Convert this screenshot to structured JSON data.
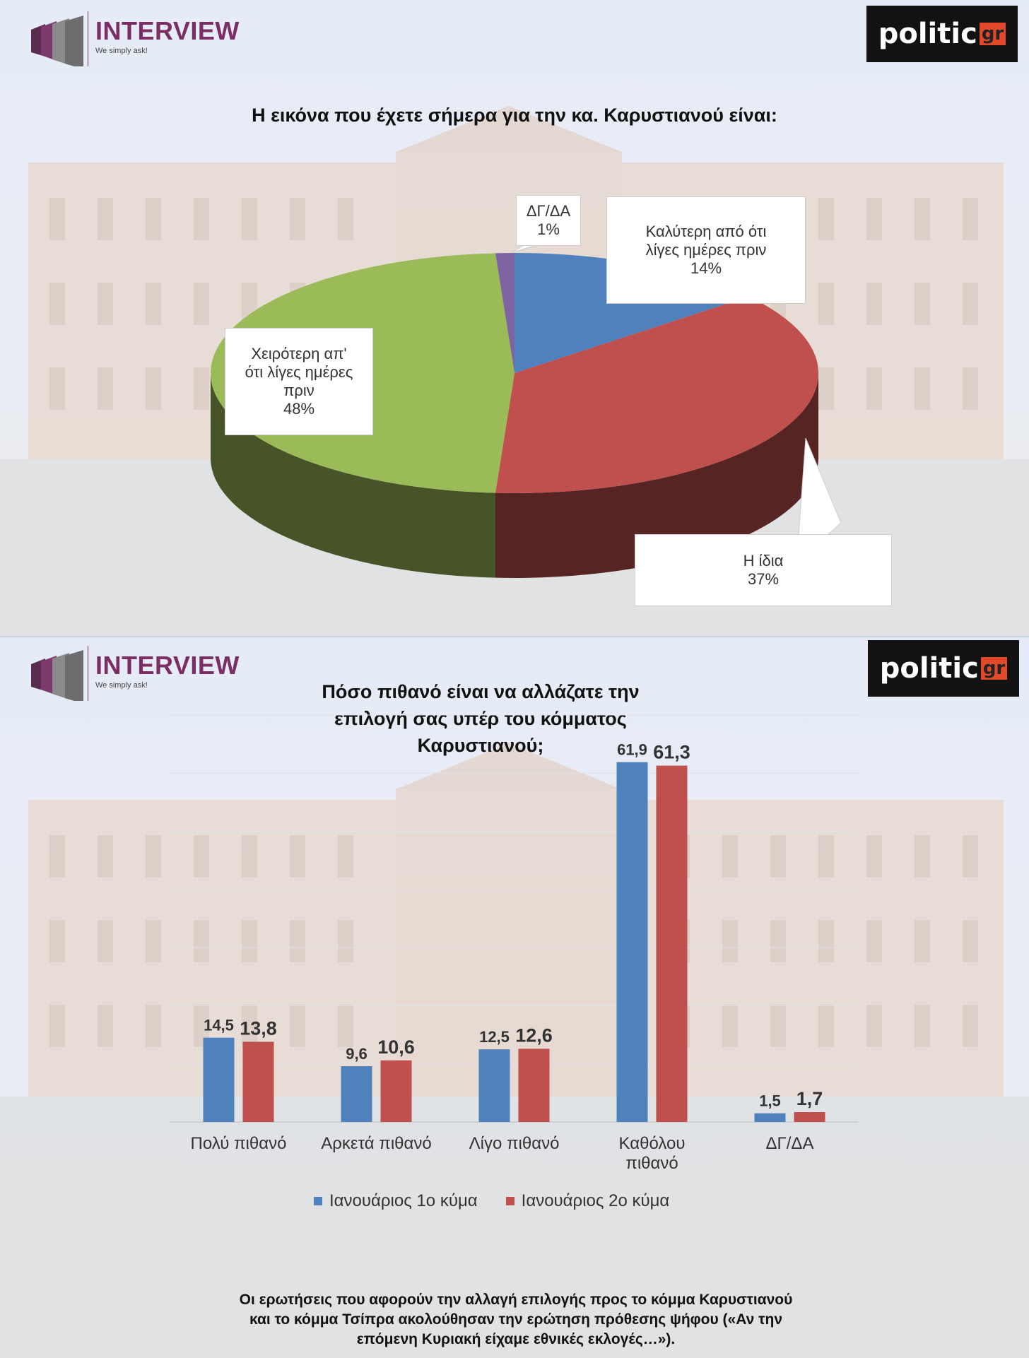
{
  "panel1": {
    "logo": {
      "name": "INTERVIEW",
      "tagline": "We simply ask!"
    },
    "brand": {
      "word": "politic",
      "suffix": "gr"
    },
    "title": "Η εικόνα που έχετε σήμερα για την κα. Καρυστιανού είναι:",
    "labels": {
      "dgda": {
        "name": "ΔΓ/ΔΑ",
        "pct": "1%"
      },
      "better": {
        "line1": "Καλύτερη από ότι",
        "line2": "λίγες ημέρες πριν",
        "pct": "14%"
      },
      "worse": {
        "line1": "Χειρότερη απ'",
        "line2": "ότι λίγες ημέρες",
        "line3": "πριν",
        "pct": "48%"
      },
      "same": {
        "name": "Η ίδια",
        "pct": "37%"
      }
    }
  },
  "panel2": {
    "logo": {
      "name": "INTERVIEW",
      "tagline": "We simply ask!"
    },
    "brand": {
      "word": "politic",
      "suffix": "gr"
    },
    "title": {
      "line1": "Πόσο πιθανό είναι να αλλάζατε την",
      "line2": "επιλογή σας υπέρ του κόμματος",
      "line3": "Καρυστιανού;"
    },
    "footnote": {
      "line1": "Οι ερωτήσεις που αφορούν την αλλαγή επιλογής προς το κόμμα Καρυστιανού",
      "line2": "και το κόμμα Τσίπρα ακολούθησαν την ερώτηση πρόθεσης ψήφου («Αν την",
      "line3": "επόμενη Κυριακή είχαμε εθνικές εκλογές…»)."
    }
  },
  "colors": {
    "blue": "#4f81bd",
    "red": "#c0504d",
    "green": "#9bbb59",
    "purple": "#8064a2"
  },
  "chart_data": [
    {
      "type": "pie",
      "title": "Η εικόνα που έχετε σήμερα για την κα. Καρυστιανού είναι:",
      "slices": [
        {
          "label": "Καλύτερη από ότι λίγες ημέρες πριν",
          "value": 14
        },
        {
          "label": "Η ίδια",
          "value": 37
        },
        {
          "label": "Χειρότερη απ' ότι λίγες ημέρες πριν",
          "value": 48
        },
        {
          "label": "ΔΓ/ΔΑ",
          "value": 1
        }
      ]
    },
    {
      "type": "bar",
      "title": "Πόσο πιθανό είναι να αλλάζατε την επιλογή σας υπέρ του κόμματος Καρυστιανού;",
      "categories": [
        "Πολύ πιθανό",
        "Αρκετά πιθανό",
        "Λίγο πιθανό",
        "Καθόλου πιθανό",
        "ΔΓ/ΔΑ"
      ],
      "series": [
        {
          "name": "Ιανουάριος 1ο κύμα",
          "values": [
            14.5,
            9.6,
            12.5,
            61.9,
            1.5
          ],
          "labels": [
            "14,5",
            "9,6",
            "12,5",
            "61,9",
            "1,5"
          ]
        },
        {
          "name": "Ιανουάριος 2ο κύμα",
          "values": [
            13.8,
            10.6,
            12.6,
            61.3,
            1.7
          ],
          "labels": [
            "13,8",
            "10,6",
            "12,6",
            "61,3",
            "1,7"
          ]
        }
      ],
      "ylim": [
        0,
        70
      ],
      "legend": "bottom"
    }
  ]
}
